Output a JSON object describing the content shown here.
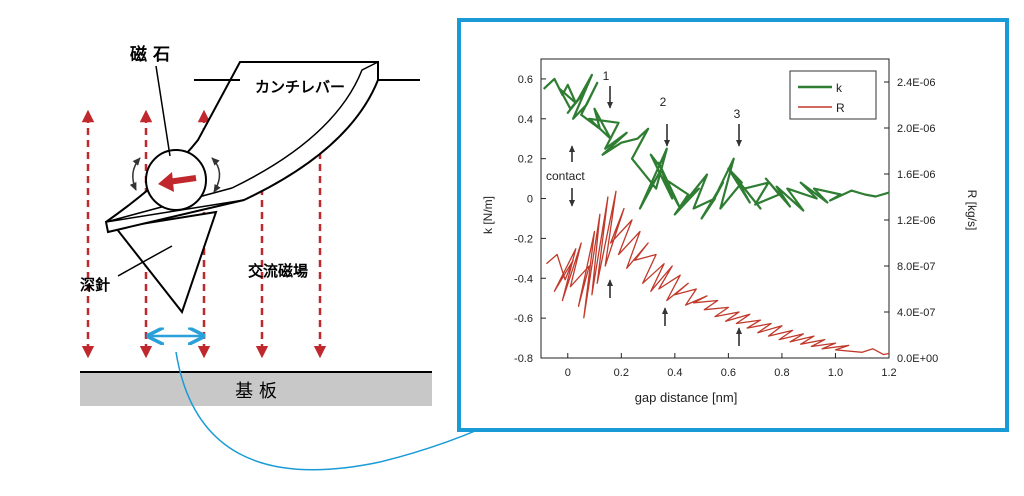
{
  "schematic": {
    "magnet_label": "磁 石",
    "cantilever_label": "カンチレバー",
    "probe_label": "深針",
    "field_label": "交流磁場",
    "substrate_label": "基 板"
  },
  "colors": {
    "field_arrow": "#c0282d",
    "frame_border": "#1a9bd7",
    "gap_arrow": "#2aa0d8",
    "k_series": "#2e7d32",
    "R_series": "#c0392b"
  },
  "chart_data": {
    "type": "line",
    "xlabel": "gap distance [nm]",
    "ylabel": "k [N/m]",
    "y2label": "R [kg/s]",
    "xlim": [
      -0.1,
      1.2
    ],
    "ylim": [
      -0.8,
      0.7
    ],
    "y2lim": [
      0,
      2.6e-06
    ],
    "xticks": [
      "0",
      "0.2",
      "0.4",
      "0.6",
      "0.8",
      "1.0",
      "1.2"
    ],
    "yticks": [
      "0.6",
      "0.4",
      "0.2",
      "0",
      "-0.2",
      "-0.4",
      "-0.6",
      "-0.8"
    ],
    "y2ticks": [
      "2.4E-06",
      "2.0E-06",
      "1.6E-06",
      "1.2E-06",
      "8.0E-07",
      "4.0E-07",
      "0.0E+00"
    ],
    "legend_position": "top-right",
    "annotations": {
      "contact": "contact",
      "marker_1": "1",
      "marker_2": "2",
      "marker_3": "3"
    },
    "series": [
      {
        "name": "k",
        "axis": "left",
        "x": [
          -0.09,
          -0.05,
          -0.02,
          0.0,
          0.03,
          -0.03,
          0.01,
          0.06,
          0.0,
          0.04,
          0.09,
          0.02,
          0.07,
          0.11,
          0.05,
          0.12,
          0.1,
          0.16,
          0.08,
          0.19,
          0.14,
          0.22,
          0.13,
          0.2,
          0.26,
          0.3,
          0.24,
          0.33,
          0.37,
          0.27,
          0.35,
          0.31,
          0.39,
          0.34,
          0.42,
          0.36,
          0.45,
          0.4,
          0.49,
          0.43,
          0.52,
          0.47,
          0.55,
          0.5,
          0.58,
          0.54,
          0.62,
          0.57,
          0.65,
          0.6,
          0.68,
          0.63,
          0.72,
          0.66,
          0.75,
          0.7,
          0.79,
          0.74,
          0.83,
          0.78,
          0.88,
          0.82,
          0.93,
          0.87,
          0.97,
          0.92,
          1.02,
          0.98,
          1.06,
          1.11,
          1.15,
          1.2
        ],
        "y": [
          0.55,
          0.6,
          0.52,
          0.57,
          0.48,
          0.55,
          0.45,
          0.53,
          0.43,
          0.5,
          0.62,
          0.4,
          0.47,
          0.58,
          0.42,
          0.35,
          0.45,
          0.3,
          0.4,
          0.38,
          0.25,
          0.33,
          0.22,
          0.28,
          0.3,
          0.35,
          0.2,
          0.05,
          0.25,
          -0.05,
          0.15,
          0.22,
          0.0,
          0.18,
          -0.05,
          0.1,
          0.02,
          -0.08,
          0.05,
          -0.03,
          0.12,
          -0.05,
          0.0,
          -0.1,
          0.08,
          -0.02,
          0.2,
          -0.05,
          0.08,
          0.15,
          -0.02,
          0.1,
          -0.05,
          0.05,
          0.08,
          -0.03,
          0.02,
          0.1,
          -0.04,
          0.06,
          -0.06,
          0.05,
          0.0,
          0.08,
          -0.02,
          0.05,
          0.02,
          -0.01,
          0.04,
          0.02,
          0.01,
          0.03
        ]
      },
      {
        "name": "R",
        "axis": "right",
        "x": [
          -0.08,
          -0.04,
          -0.01,
          0.02,
          -0.05,
          0.03,
          -0.02,
          0.05,
          0.01,
          0.08,
          0.04,
          0.1,
          0.06,
          0.12,
          0.09,
          0.15,
          0.11,
          0.18,
          0.14,
          0.21,
          0.16,
          0.24,
          0.19,
          0.27,
          0.22,
          0.3,
          0.25,
          0.33,
          0.28,
          0.36,
          0.31,
          0.39,
          0.34,
          0.42,
          0.37,
          0.45,
          0.4,
          0.48,
          0.44,
          0.52,
          0.47,
          0.56,
          0.51,
          0.6,
          0.55,
          0.64,
          0.59,
          0.68,
          0.63,
          0.72,
          0.67,
          0.76,
          0.71,
          0.8,
          0.75,
          0.84,
          0.79,
          0.88,
          0.83,
          0.92,
          0.87,
          0.96,
          0.91,
          1.0,
          0.95,
          1.05,
          1.0,
          1.1,
          1.14,
          1.18,
          1.2
        ],
        "y": [
          8.2e-07,
          9e-07,
          6.8e-07,
          8.5e-07,
          5.8e-07,
          9.5e-07,
          5e-07,
          1e-06,
          6.2e-07,
          8e-07,
          4.5e-07,
          1.1e-06,
          3.5e-07,
          1.25e-06,
          5.5e-07,
          1.4e-06,
          6.5e-07,
          1.45e-06,
          8e-07,
          1.3e-06,
          1e-06,
          1.2e-06,
          9e-07,
          1.1e-06,
          7.8e-07,
          1e-06,
          8.5e-07,
          9e-07,
          6.5e-07,
          8.2e-07,
          5.8e-07,
          8e-07,
          6e-07,
          7.2e-07,
          5e-07,
          6.5e-07,
          5.5e-07,
          6e-07,
          4.6e-07,
          5.4e-07,
          4.8e-07,
          5e-07,
          4.2e-07,
          4.4e-07,
          3.6e-07,
          4e-07,
          3.2e-07,
          3.8e-07,
          3e-07,
          3.3e-07,
          2.6e-07,
          3e-07,
          2.2e-07,
          2.8e-07,
          1.9e-07,
          2.4e-07,
          1.6e-07,
          2.1e-07,
          1.4e-07,
          1.9e-07,
          1.2e-07,
          1.6e-07,
          1e-07,
          1.3e-07,
          8e-08,
          1.1e-07,
          7e-08,
          5e-08,
          8e-08,
          3e-08,
          4e-08
        ]
      }
    ]
  }
}
